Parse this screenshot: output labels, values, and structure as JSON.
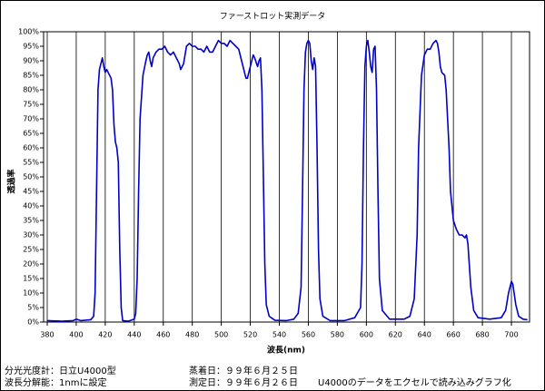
{
  "chart_data": {
    "type": "line",
    "title": "ファーストロット実測データ",
    "x_label": "波長(nm)",
    "y_label": "透過率",
    "notes": [
      "分光光度計：日立U4000型",
      "波長分解能：1nmに設定",
      "蒸着日：９９年６月２５日",
      "測定日：９９年６月２６日",
      "U4000のデータをエクセルで読み込みグラフ化"
    ],
    "color": "#0000c8",
    "grid": "x",
    "xlim": [
      377.5,
      712.5
    ],
    "xticks": [
      380,
      400,
      420,
      440,
      460,
      480,
      500,
      520,
      540,
      560,
      580,
      600,
      620,
      640,
      660,
      680,
      700
    ],
    "ylim": [
      0,
      100
    ],
    "yticks": [
      {
        "value": 0,
        "label": "0%"
      },
      {
        "value": 5,
        "label": "5%"
      },
      {
        "value": 10,
        "label": "10%"
      },
      {
        "value": 15,
        "label": "15%"
      },
      {
        "value": 20,
        "label": "20%"
      },
      {
        "value": 25,
        "label": "25%"
      },
      {
        "value": 30,
        "label": "30%"
      },
      {
        "value": 35,
        "label": "35%"
      },
      {
        "value": 40,
        "label": "40%"
      },
      {
        "value": 45,
        "label": "45%"
      },
      {
        "value": 50,
        "label": "50%"
      },
      {
        "value": 55,
        "label": "55%"
      },
      {
        "value": 60,
        "label": "60%"
      },
      {
        "value": 65,
        "label": "65%"
      },
      {
        "value": 70,
        "label": "70%"
      },
      {
        "value": 75,
        "label": "75%"
      },
      {
        "value": 80,
        "label": "80%"
      },
      {
        "value": 85,
        "label": "85%"
      },
      {
        "value": 90,
        "label": "90%"
      },
      {
        "value": 95,
        "label": "95%"
      },
      {
        "value": 100,
        "label": "100%"
      }
    ],
    "x": [
      380,
      390,
      398,
      400,
      403,
      410,
      412,
      413,
      414,
      415,
      416,
      417,
      418,
      419,
      420,
      421,
      422,
      423,
      424,
      425,
      426,
      427,
      428,
      429,
      430,
      431,
      432,
      436,
      440,
      441,
      442,
      443,
      444,
      446,
      448,
      449,
      450,
      451,
      452,
      453,
      455,
      457,
      459,
      461,
      463,
      465,
      467,
      469,
      471,
      472,
      474,
      476,
      478,
      480,
      482,
      484,
      486,
      488,
      490,
      492,
      494,
      496,
      498,
      500,
      502,
      504,
      506,
      508,
      510,
      512,
      514,
      516,
      517,
      518,
      520,
      522,
      523,
      525,
      526,
      527,
      528,
      529,
      530,
      531,
      533,
      537,
      545,
      550,
      553,
      555,
      556,
      557,
      558,
      559,
      560,
      561,
      562,
      563,
      564,
      565,
      566,
      567,
      568,
      570,
      575,
      585,
      592,
      596,
      597,
      598,
      599,
      600,
      601,
      602,
      603,
      604,
      605,
      606,
      607,
      608,
      609,
      611,
      616,
      626,
      630,
      633,
      635,
      636,
      638,
      640,
      642,
      644,
      646,
      648,
      649,
      650,
      651,
      652,
      654,
      655,
      656,
      657,
      658,
      660,
      662,
      664,
      666,
      668,
      669,
      670,
      672,
      674,
      677,
      685,
      693,
      696,
      698,
      700,
      701,
      703,
      705,
      708,
      711
    ],
    "values": [
      0.5,
      0.3,
      0.5,
      1,
      0.5,
      0.8,
      2,
      10,
      45,
      80,
      87,
      89,
      91,
      88,
      86,
      87,
      86,
      85,
      84,
      80,
      68,
      62,
      60,
      55,
      25,
      5,
      0.5,
      0.3,
      1,
      3,
      15,
      45,
      70,
      85,
      90,
      92,
      93,
      90,
      88,
      91,
      93,
      94,
      94,
      95,
      93,
      92,
      93,
      91,
      89,
      87,
      89,
      95,
      96,
      95,
      95,
      94,
      94,
      93,
      95,
      93,
      93,
      95,
      97,
      96,
      96,
      95,
      97,
      96,
      95,
      94,
      90,
      86,
      84,
      84,
      88,
      92,
      91,
      88,
      90,
      91,
      80,
      50,
      20,
      6,
      2,
      0.6,
      0.5,
      1,
      3,
      12,
      45,
      80,
      93,
      96,
      97,
      96,
      90,
      87,
      91,
      88,
      60,
      25,
      8,
      2,
      0.5,
      0.5,
      1.5,
      5,
      20,
      60,
      88,
      95,
      97,
      93,
      88,
      86,
      94,
      95,
      80,
      45,
      15,
      4,
      1,
      1,
      2,
      8,
      30,
      60,
      85,
      92,
      94,
      94,
      96,
      97,
      96,
      93,
      88,
      86,
      85,
      80,
      70,
      60,
      45,
      35,
      32,
      30,
      30,
      29,
      30,
      27,
      12,
      4,
      1.5,
      1,
      1.5,
      4,
      10,
      14,
      13,
      6,
      2,
      1,
      0.8
    ]
  }
}
